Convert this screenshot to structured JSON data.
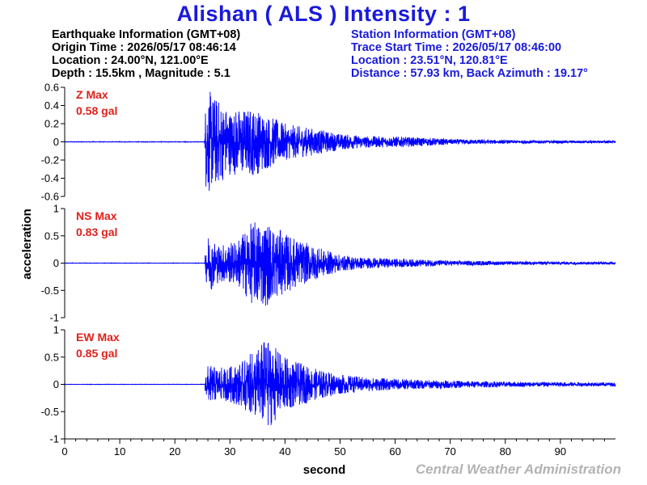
{
  "title": "Alishan ( ALS ) Intensity : 1",
  "earthquake_info": {
    "header": "Earthquake Information  (GMT+08)",
    "origin_time": "Origin Time : 2026/05/17 08:46:14",
    "location": "Location : 24.00°N, 121.00°E",
    "depth_magnitude": "Depth : 15.5km , Magnitude : 5.1"
  },
  "station_info": {
    "header": "Station Information  (GMT+08)",
    "trace_start": "Trace Start Time : 2026/05/17 08:46:00",
    "location": "Location : 23.51°N, 120.81°E",
    "distance": "Distance : 57.93 km, Back Azimuth : 19.17°"
  },
  "credit": "Central Weather Administration",
  "colors": {
    "trace": "#0000ff",
    "max_label": "#e0201a",
    "title": "#1a1adb",
    "credit": "#b3b3b3"
  },
  "chart_data": {
    "type": "line",
    "xlabel": "second",
    "ylabel": "acceleration",
    "xlim": [
      0,
      100
    ],
    "xticks": [
      0,
      10,
      20,
      30,
      40,
      50,
      60,
      70,
      80,
      90
    ],
    "grid": false,
    "panels": [
      {
        "component": "Z",
        "max_label": "Z Max",
        "max_value": "0.58 gal",
        "ylim": [
          -0.6,
          0.6
        ],
        "yticks": [
          0.6,
          0.4,
          0.2,
          0,
          -0.2,
          -0.4,
          -0.6
        ],
        "onset_s": 25.5,
        "envelope": [
          {
            "t": 0,
            "a": 0.005
          },
          {
            "t": 25.4,
            "a": 0.005
          },
          {
            "t": 25.6,
            "a": 0.52
          },
          {
            "t": 26,
            "a": 0.58
          },
          {
            "t": 30,
            "a": 0.36
          },
          {
            "t": 34,
            "a": 0.38
          },
          {
            "t": 36,
            "a": 0.33
          },
          {
            "t": 40,
            "a": 0.2
          },
          {
            "t": 45,
            "a": 0.15
          },
          {
            "t": 50,
            "a": 0.09
          },
          {
            "t": 55,
            "a": 0.065
          },
          {
            "t": 60,
            "a": 0.06
          },
          {
            "t": 66,
            "a": 0.045
          },
          {
            "t": 70,
            "a": 0.03
          },
          {
            "t": 80,
            "a": 0.02
          },
          {
            "t": 100,
            "a": 0.015
          }
        ]
      },
      {
        "component": "NS",
        "max_label": "NS Max",
        "max_value": "0.83 gal",
        "ylim": [
          -1,
          1
        ],
        "yticks": [
          1,
          0.5,
          0,
          -0.5,
          -1
        ],
        "onset_s": 25.5,
        "envelope": [
          {
            "t": 0,
            "a": 0.006
          },
          {
            "t": 25.4,
            "a": 0.006
          },
          {
            "t": 25.6,
            "a": 0.28
          },
          {
            "t": 26,
            "a": 0.55
          },
          {
            "t": 28,
            "a": 0.35
          },
          {
            "t": 31,
            "a": 0.4
          },
          {
            "t": 34,
            "a": 0.75
          },
          {
            "t": 36,
            "a": 0.83
          },
          {
            "t": 40,
            "a": 0.55
          },
          {
            "t": 45,
            "a": 0.32
          },
          {
            "t": 50,
            "a": 0.15
          },
          {
            "t": 55,
            "a": 0.1
          },
          {
            "t": 60,
            "a": 0.08
          },
          {
            "t": 70,
            "a": 0.05
          },
          {
            "t": 80,
            "a": 0.035
          },
          {
            "t": 100,
            "a": 0.025
          }
        ]
      },
      {
        "component": "EW",
        "max_label": "EW Max",
        "max_value": "0.85 gal",
        "ylim": [
          -1,
          1
        ],
        "yticks": [
          1,
          0.5,
          0,
          -0.5,
          -1
        ],
        "onset_s": 25.5,
        "envelope": [
          {
            "t": 0,
            "a": 0.006
          },
          {
            "t": 25.4,
            "a": 0.006
          },
          {
            "t": 25.6,
            "a": 0.25
          },
          {
            "t": 26,
            "a": 0.35
          },
          {
            "t": 29,
            "a": 0.3
          },
          {
            "t": 32,
            "a": 0.4
          },
          {
            "t": 35,
            "a": 0.68
          },
          {
            "t": 36.5,
            "a": 0.85
          },
          {
            "t": 40,
            "a": 0.5
          },
          {
            "t": 45,
            "a": 0.3
          },
          {
            "t": 50,
            "a": 0.18
          },
          {
            "t": 55,
            "a": 0.13
          },
          {
            "t": 60,
            "a": 0.1
          },
          {
            "t": 70,
            "a": 0.07
          },
          {
            "t": 80,
            "a": 0.05
          },
          {
            "t": 100,
            "a": 0.035
          }
        ]
      }
    ]
  }
}
